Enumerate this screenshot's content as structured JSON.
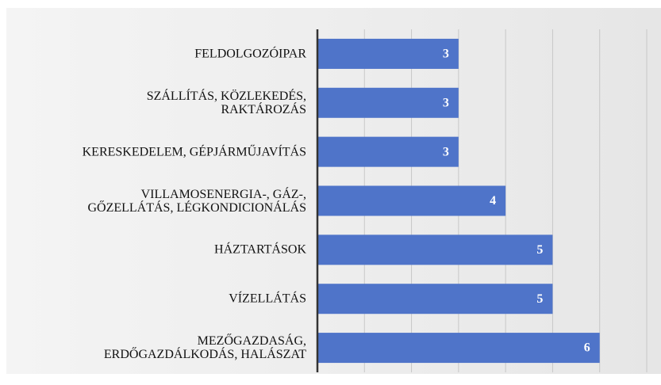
{
  "chart_data": {
    "type": "barh",
    "categories": [
      "FELDOLGOZÓIPAR",
      "SZÁLLÍTÁS, KÖZLEKEDÉS,\nRAKTÁROZÁS",
      "KERESKEDELEM, GÉPJÁRMŰJAVÍTÁS",
      "VILLAMOSENERGIA-, GÁZ-,\nGŐZELLÁTÁS, LÉGKONDICIONÁLÁS",
      "HÁZTARTÁSOK",
      "VÍZELLÁTÁS",
      "MEZŐGAZDASÁG,\nERDŐGAZDÁLKODÁS, HALÁSZAT"
    ],
    "values": [
      3,
      3,
      3,
      4,
      5,
      5,
      6
    ],
    "color": "#4f74c9",
    "xlim": [
      0,
      7
    ],
    "xticks": [
      0,
      1,
      2,
      3,
      4,
      5,
      6,
      7
    ],
    "grid": true
  }
}
